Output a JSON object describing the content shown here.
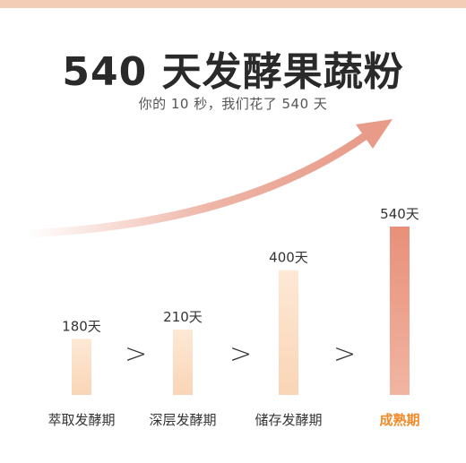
{
  "title": "540 天发酵果蔬粉",
  "subtitle": "你的 10 秒，我们花了 540 天",
  "separator": ">",
  "colors": {
    "top_bar": "#f4cdb6",
    "bar_light_top": "#fde9d6",
    "bar_light_bottom": "#f9d5b5",
    "bar_accent_top": "#e8907a",
    "bar_accent_bottom": "#f1b5a2",
    "arrow": "#e89b88",
    "label": "#333333",
    "highlight_label": "#f08a2b"
  },
  "chart_data": {
    "type": "bar",
    "categories": [
      "萃取发酵期",
      "深层发酵期",
      "储存发酵期",
      "成熟期"
    ],
    "values": [
      180,
      210,
      400,
      540
    ],
    "value_labels": [
      "180天",
      "210天",
      "400天",
      "540天"
    ],
    "highlight_index": 3,
    "ylim": [
      0,
      540
    ]
  }
}
